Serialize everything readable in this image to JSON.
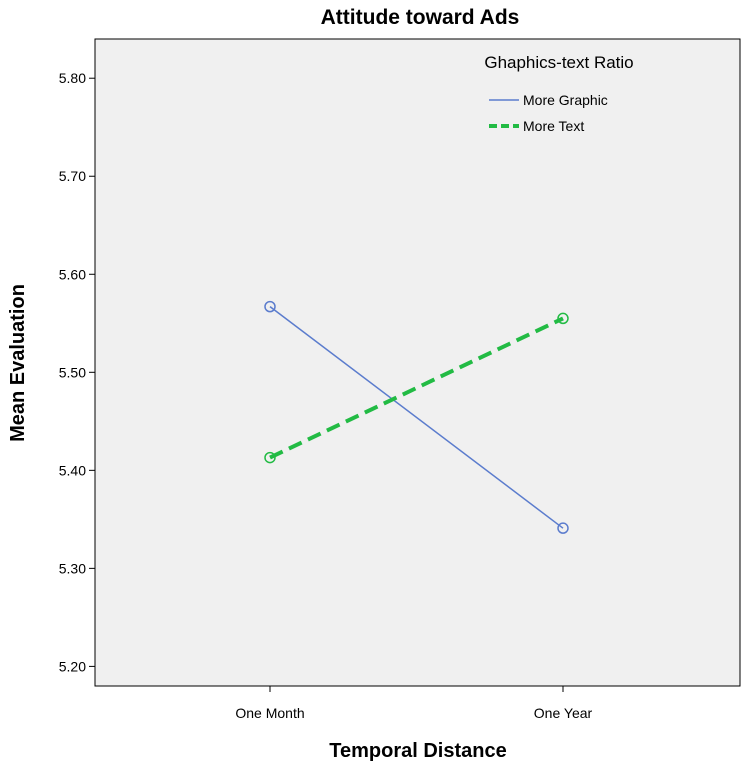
{
  "chart_data": {
    "type": "line",
    "title": "Attitude toward Ads",
    "xlabel": "Temporal Distance",
    "ylabel": "Mean Evaluation",
    "categories": [
      "One Month",
      "One Year"
    ],
    "ylim": [
      5.18,
      5.84
    ],
    "yticks": [
      "5.20",
      "5.30",
      "5.40",
      "5.50",
      "5.60",
      "5.70",
      "5.80"
    ],
    "grid": false,
    "legend": {
      "title": "Ghaphics-text Ratio",
      "placement": "top-right"
    },
    "series": [
      {
        "name": "More Graphic",
        "values": [
          5.567,
          5.341
        ],
        "color": "#5b7ccd",
        "dash": "solid",
        "marker": "circle"
      },
      {
        "name": "More Text",
        "values": [
          5.413,
          5.555
        ],
        "color": "#22bb44",
        "dash": "dashed",
        "marker": "circle"
      }
    ]
  }
}
